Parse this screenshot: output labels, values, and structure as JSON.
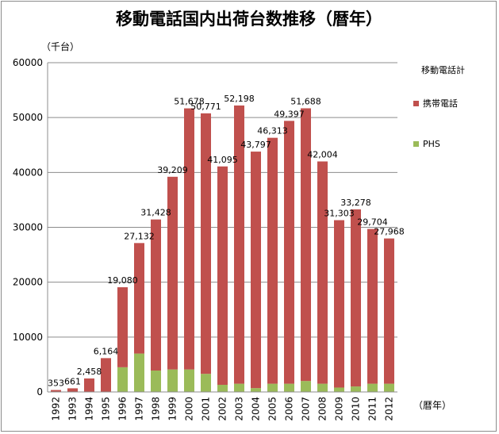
{
  "chart_data": {
    "type": "bar",
    "stacked": true,
    "title": "移動電話国内出荷台数推移（暦年）",
    "ylabel": "（千台）",
    "xlabel": "（暦年）",
    "ylim": [
      0,
      60000
    ],
    "yticks": [
      "0",
      "10000",
      "20000",
      "30000",
      "40000",
      "50000",
      "60000"
    ],
    "grid": true,
    "legend_position": "right",
    "legend_title": "移動電話計",
    "categories": [
      "1992",
      "1993",
      "1994",
      "1995",
      "1996",
      "1997",
      "1998",
      "1999",
      "2000",
      "2001",
      "2002",
      "2003",
      "2004",
      "2005",
      "2006",
      "2007",
      "2008",
      "2009",
      "2010",
      "2011",
      "2012"
    ],
    "totals": [
      353,
      661,
      2458,
      6164,
      19080,
      27132,
      31428,
      39209,
      51678,
      50771,
      41095,
      52198,
      43797,
      46313,
      49397,
      51688,
      42004,
      31303,
      33278,
      29704,
      27968
    ],
    "total_labels": [
      "353",
      "661",
      "2,458",
      "6,164",
      "19,080",
      "27,132",
      "31,428",
      "39,209",
      "51,678",
      "50,771",
      "41,095",
      "52,198",
      "43,797",
      "46,313",
      "49,397",
      "51,688",
      "42,004",
      "31,303",
      "33,278",
      "29,704",
      "27,968"
    ],
    "series": [
      {
        "name": "PHS",
        "color": "#9bbb59",
        "values": [
          0,
          0,
          0,
          0,
          4500,
          7000,
          3900,
          4100,
          4100,
          3300,
          1300,
          1500,
          700,
          1500,
          1500,
          2000,
          1500,
          800,
          1000,
          1500,
          1500
        ]
      },
      {
        "name": "携帯電話",
        "color": "#c0504d",
        "values": [
          353,
          661,
          2458,
          6164,
          14580,
          20132,
          27528,
          35109,
          47578,
          47471,
          39795,
          50698,
          43097,
          44813,
          47897,
          49688,
          40504,
          30503,
          32278,
          28204,
          26468
        ]
      }
    ]
  }
}
